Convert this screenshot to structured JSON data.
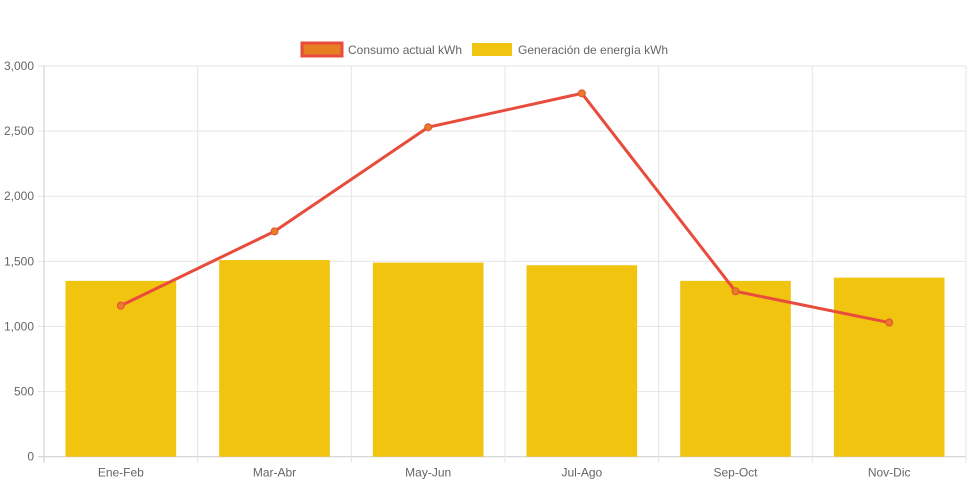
{
  "chart_data": {
    "type": "bar",
    "categories": [
      "Ene-Feb",
      "Mar-Abr",
      "May-Jun",
      "Jul-Ago",
      "Sep-Oct",
      "Nov-Dic"
    ],
    "series": [
      {
        "name": "Consumo actual kWh",
        "type": "line",
        "values": [
          1160,
          1730,
          2530,
          2790,
          1270,
          1030
        ],
        "color": "#e74c3c",
        "point_color": "#e67e22"
      },
      {
        "name": "Generación de energía kWh",
        "type": "bar",
        "values": [
          1350,
          1510,
          1490,
          1470,
          1350,
          1375
        ],
        "color": "#f1c40f"
      }
    ],
    "ylim": [
      0,
      3000
    ],
    "yticks": [
      "0",
      "500",
      "1,000",
      "1,500",
      "2,000",
      "2,500",
      "3,000"
    ],
    "grid": true,
    "legend": "top"
  }
}
